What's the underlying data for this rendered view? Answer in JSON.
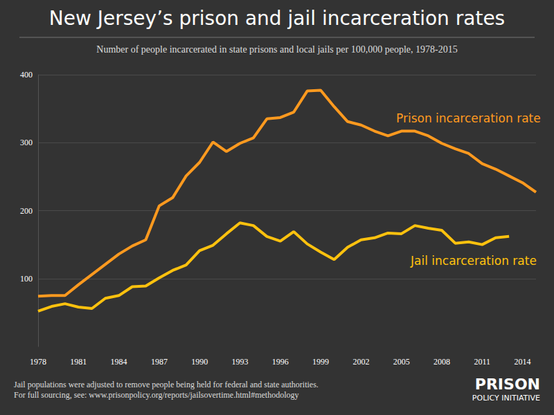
{
  "chart_data": {
    "type": "line",
    "title": "New Jersey’s prison and jail incarceration rates",
    "subtitle": "Number of people incarcerated in state prisons and local jails per 100,000 people, 1978-2015",
    "categories": [
      1978,
      null,
      null,
      1981,
      null,
      null,
      1984,
      null,
      null,
      1987,
      null,
      null,
      1990,
      null,
      null,
      1993,
      null,
      null,
      1996,
      null,
      null,
      1999,
      null,
      null,
      2002,
      null,
      null,
      2005,
      null,
      null,
      2008,
      null,
      null,
      2011,
      null,
      null,
      2014,
      null
    ],
    "series": [
      {
        "name": "Prison incarceration rate",
        "color": "#ff9a1f",
        "values": [
          74,
          75,
          75,
          91,
          106,
          121,
          136,
          148,
          157,
          207,
          219,
          251,
          271,
          301,
          287,
          299,
          307,
          335,
          337,
          345,
          376,
          377,
          353,
          331,
          326,
          317,
          310,
          317,
          317,
          310,
          299,
          291,
          284,
          269,
          261,
          251,
          241,
          227
        ]
      },
      {
        "name": "Jail incarceration rate",
        "color": "#ffc20e",
        "values": [
          52,
          59,
          63,
          58,
          56,
          71,
          75,
          88,
          89,
          101,
          112,
          120,
          141,
          149,
          166,
          182,
          178,
          162,
          155,
          169,
          151,
          139,
          128,
          146,
          157,
          160,
          167,
          166,
          178,
          174,
          171,
          152,
          154,
          150,
          160,
          162,
          null,
          null
        ]
      }
    ],
    "ylim": [
      0,
      400
    ],
    "yticks": [
      100,
      200,
      300,
      400
    ],
    "grid": true,
    "notes": [
      "Jail populations were adjusted to remove people being held for federal and state authorities.",
      "For full sourcing, see: www.prisonpolicy.org/reports/jailsovertime.html#methodology"
    ],
    "logo": [
      "PRISON",
      "POLICY INITIATIVE"
    ]
  }
}
